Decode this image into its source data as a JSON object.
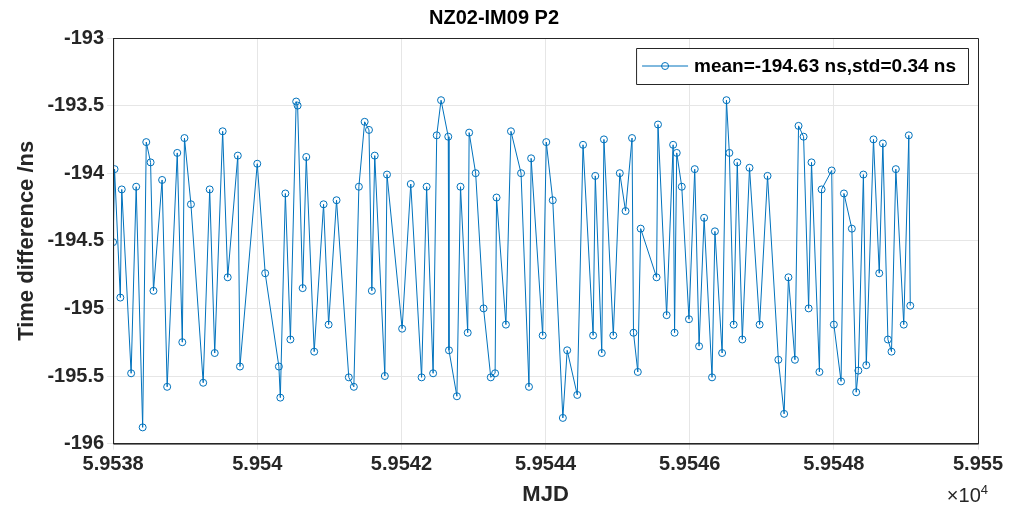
{
  "chart_data": {
    "type": "line",
    "title": "NZ02-IM09 P2",
    "xlabel": "MJD",
    "ylabel": "Time difference /ns",
    "annotations": [
      "×10$^{4}$"
    ],
    "xlim": [
      5.9538,
      5.955
    ],
    "xticks": [
      5.9538,
      5.954,
      5.9542,
      5.9544,
      5.9546,
      5.9548,
      5.955
    ],
    "ylim": [
      -196,
      -193
    ],
    "yticks": [
      -196,
      -195.5,
      -195,
      -194.5,
      -194,
      -193.5,
      -193
    ],
    "grid": true,
    "legend": "top right",
    "marker": "circle",
    "line_style": "solid",
    "series": [
      {
        "name": "mean=-194.63 ns,std=0.34 ns",
        "color": "#0072bd",
        "x": [
          5.9538,
          5.953802,
          5.95381,
          5.953812,
          5.953825,
          5.953832,
          5.953841,
          5.953846,
          5.953852,
          5.953856,
          5.953868,
          5.953875,
          5.953889,
          5.953896,
          5.953899,
          5.953908,
          5.953925,
          5.953934,
          5.953941,
          5.953952,
          5.953959,
          5.953973,
          5.953976,
          5.954,
          5.954011,
          5.95403,
          5.954032,
          5.954039,
          5.954046,
          5.954054,
          5.954056,
          5.954063,
          5.954068,
          5.954079,
          5.954092,
          5.954099,
          5.95411,
          5.954127,
          5.954134,
          5.954141,
          5.954149,
          5.954155,
          5.954159,
          5.954163,
          5.954177,
          5.95418,
          5.954201,
          5.954213,
          5.954228,
          5.954235,
          5.954244,
          5.954249,
          5.954255,
          5.954265,
          5.954266,
          5.954277,
          5.954282,
          5.954292,
          5.954294,
          5.954303,
          5.954314,
          5.954324,
          5.95433,
          5.954332,
          5.954345,
          5.954352,
          5.954366,
          5.954377,
          5.95438,
          5.954396,
          5.954401,
          5.95441,
          5.954424,
          5.95443,
          5.954444,
          5.954452,
          5.954466,
          5.954469,
          5.954478,
          5.954481,
          5.954494,
          5.954503,
          5.954511,
          5.95452,
          5.954522,
          5.954528,
          5.954532,
          5.954554,
          5.954556,
          5.954568,
          5.954577,
          5.954579,
          5.954582,
          5.954589,
          5.954599,
          5.954607,
          5.954613,
          5.95462,
          5.954631,
          5.954635,
          5.954645,
          5.954651,
          5.954655,
          5.954661,
          5.954666,
          5.954673,
          5.954683,
          5.954697,
          5.954708,
          5.954723,
          5.954731,
          5.954737,
          5.954746,
          5.954751,
          5.954758,
          5.954765,
          5.954769,
          5.95478,
          5.954783,
          5.954797,
          5.9548,
          5.95481,
          5.954814,
          5.954825,
          5.954831,
          5.954834,
          5.954841,
          5.954845,
          5.954855,
          5.954863,
          5.954868,
          5.954875,
          5.95488,
          5.954886,
          5.954897,
          5.954904,
          5.954906
        ],
        "values": [
          -194.51,
          -193.97,
          -194.92,
          -194.12,
          -195.48,
          -194.1,
          -195.88,
          -193.77,
          -193.92,
          -194.87,
          -194.05,
          -195.58,
          -193.85,
          -195.25,
          -193.74,
          -194.23,
          -195.55,
          -194.12,
          -195.33,
          -193.69,
          -194.77,
          -193.87,
          -195.43,
          -193.93,
          -194.74,
          -195.43,
          -195.66,
          -194.15,
          -195.23,
          -193.47,
          -193.5,
          -194.85,
          -193.88,
          -195.32,
          -194.23,
          -195.12,
          -194.2,
          -195.51,
          -195.58,
          -194.1,
          -193.62,
          -193.68,
          -194.87,
          -193.87,
          -195.5,
          -194.01,
          -195.15,
          -194.08,
          -195.51,
          -194.1,
          -195.48,
          -193.72,
          -193.46,
          -193.73,
          -195.31,
          -195.65,
          -194.1,
          -195.18,
          -193.7,
          -194.0,
          -195.0,
          -195.51,
          -195.48,
          -194.18,
          -195.12,
          -193.69,
          -194.0,
          -195.58,
          -193.89,
          -195.2,
          -193.77,
          -194.2,
          -195.81,
          -195.31,
          -195.64,
          -193.79,
          -195.2,
          -194.02,
          -195.33,
          -193.75,
          -195.2,
          -194.0,
          -194.28,
          -193.74,
          -195.18,
          -195.47,
          -194.41,
          -194.77,
          -193.64,
          -195.05,
          -193.79,
          -195.18,
          -193.85,
          -194.1,
          -195.08,
          -193.97,
          -195.28,
          -194.33,
          -195.51,
          -194.43,
          -195.33,
          -193.46,
          -193.85,
          -195.12,
          -193.92,
          -195.23,
          -193.96,
          -195.12,
          -194.02,
          -195.38,
          -195.78,
          -194.77,
          -195.38,
          -193.65,
          -193.73,
          -195.0,
          -193.92,
          -195.47,
          -194.12,
          -193.98,
          -195.12,
          -195.54,
          -194.15,
          -194.41,
          -195.62,
          -195.46,
          -194.01,
          -195.42,
          -193.75,
          -194.74,
          -193.78,
          -195.23,
          -195.32,
          -193.97,
          -195.12,
          -193.72,
          -194.98
        ]
      }
    ]
  }
}
